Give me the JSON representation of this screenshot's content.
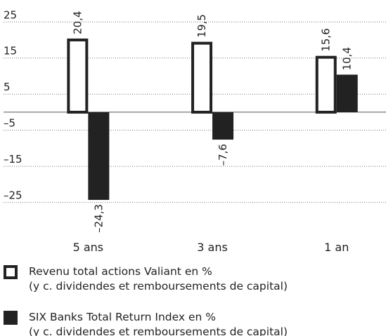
{
  "chart_data": {
    "type": "bar",
    "categories": [
      "5 ans",
      "3 ans",
      "1 an"
    ],
    "series": [
      {
        "name": "Revenu total actions Valiant en %",
        "description": "(y c. dividendes et remboursements de capital)",
        "color": "#ffffff",
        "stroke": "#222222",
        "values": [
          20.4,
          19.5,
          15.6
        ],
        "value_labels": [
          "20,4",
          "19,5",
          "15,6"
        ]
      },
      {
        "name": "SIX Banks Total Return Index en %",
        "description": "(y c. dividendes et remboursements de capital)",
        "color": "#222222",
        "values": [
          -24.3,
          -7.6,
          10.4
        ],
        "value_labels": [
          "–24,3",
          "–7,6",
          "10,4"
        ]
      }
    ],
    "ylim": [
      -28,
      27
    ],
    "yticks": [
      25,
      15,
      5,
      {
        "value": -5,
        "label": "–5"
      },
      {
        "value": -15,
        "label": "–15"
      },
      {
        "value": -25,
        "label": "–25"
      }
    ],
    "grid": true
  }
}
